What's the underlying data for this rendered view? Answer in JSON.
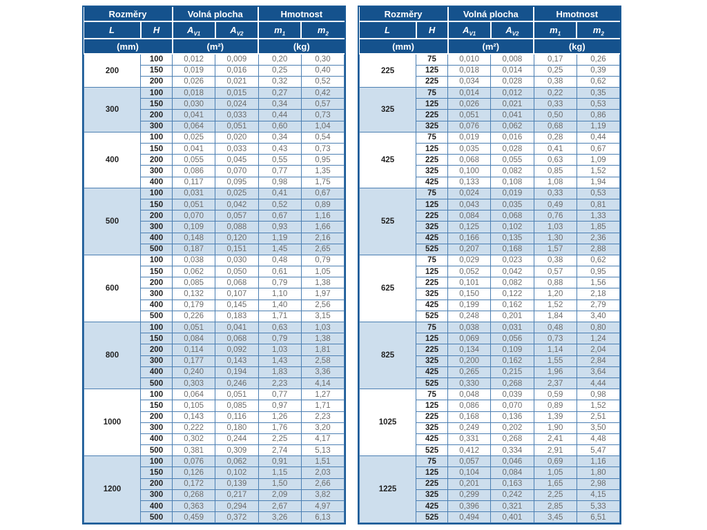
{
  "header": {
    "dimensions_label": "Rozměry",
    "free_area_label": "Volná plocha",
    "weight_label": "Hmotnost",
    "col_L": "L",
    "col_H": "H",
    "col_A_base": "A",
    "col_A_sub1": "V1",
    "col_A_sub2": "V2",
    "col_m_base": "m",
    "col_m_sub1": "1",
    "col_m_sub2": "2",
    "unit_mm": "(mm)",
    "unit_m2": "(m²)",
    "unit_kg": "(kg)"
  },
  "colors": {
    "header_bg": "#15528d",
    "outer_border": "#1a5a96",
    "grid_border": "#4a7eb2",
    "group_alt_bg": "#cddeed",
    "value_text": "#6b6b6b",
    "dim_text": "#222222"
  },
  "chart_data": {
    "type": "table",
    "note": "Ventilation grille size chart: dimensions L x H (mm), free area Av1/Av2 (m2), weight m1/m2 (kg)"
  },
  "tables": [
    {
      "name": "left",
      "groups": [
        {
          "L": "200",
          "rows": [
            [
              "100",
              "0,012",
              "0,009",
              "0,20",
              "0,30"
            ],
            [
              "150",
              "0,019",
              "0,016",
              "0,25",
              "0,40"
            ],
            [
              "200",
              "0,026",
              "0,021",
              "0,32",
              "0,52"
            ]
          ]
        },
        {
          "L": "300",
          "rows": [
            [
              "100",
              "0,018",
              "0,015",
              "0,27",
              "0,42"
            ],
            [
              "150",
              "0,030",
              "0,024",
              "0,34",
              "0,57"
            ],
            [
              "200",
              "0,041",
              "0,033",
              "0,44",
              "0,73"
            ],
            [
              "300",
              "0,064",
              "0,051",
              "0,60",
              "1,04"
            ]
          ]
        },
        {
          "L": "400",
          "rows": [
            [
              "100",
              "0,025",
              "0,020",
              "0,34",
              "0,54"
            ],
            [
              "150",
              "0,041",
              "0,033",
              "0,43",
              "0,73"
            ],
            [
              "200",
              "0,055",
              "0,045",
              "0,55",
              "0,95"
            ],
            [
              "300",
              "0,086",
              "0,070",
              "0,77",
              "1,35"
            ],
            [
              "400",
              "0,117",
              "0,095",
              "0,98",
              "1,75"
            ]
          ]
        },
        {
          "L": "500",
          "rows": [
            [
              "100",
              "0,031",
              "0,025",
              "0,41",
              "0,67"
            ],
            [
              "150",
              "0,051",
              "0,042",
              "0,52",
              "0,89"
            ],
            [
              "200",
              "0,070",
              "0,057",
              "0,67",
              "1,16"
            ],
            [
              "300",
              "0,109",
              "0,088",
              "0,93",
              "1,66"
            ],
            [
              "400",
              "0,148",
              "0,120",
              "1,19",
              "2,16"
            ],
            [
              "500",
              "0,187",
              "0,151",
              "1,45",
              "2,65"
            ]
          ]
        },
        {
          "L": "600",
          "rows": [
            [
              "100",
              "0,038",
              "0,030",
              "0,48",
              "0,79"
            ],
            [
              "150",
              "0,062",
              "0,050",
              "0,61",
              "1,05"
            ],
            [
              "200",
              "0,085",
              "0,068",
              "0,79",
              "1,38"
            ],
            [
              "300",
              "0,132",
              "0,107",
              "1,10",
              "1,97"
            ],
            [
              "400",
              "0,179",
              "0,145",
              "1,40",
              "2,56"
            ],
            [
              "500",
              "0,226",
              "0,183",
              "1,71",
              "3,15"
            ]
          ]
        },
        {
          "L": "800",
          "rows": [
            [
              "100",
              "0,051",
              "0,041",
              "0,63",
              "1,03"
            ],
            [
              "150",
              "0,084",
              "0,068",
              "0,79",
              "1,38"
            ],
            [
              "200",
              "0,114",
              "0,092",
              "1,03",
              "1,81"
            ],
            [
              "300",
              "0,177",
              "0,143",
              "1,43",
              "2,58"
            ],
            [
              "400",
              "0,240",
              "0,194",
              "1,83",
              "3,36"
            ],
            [
              "500",
              "0,303",
              "0,246",
              "2,23",
              "4,14"
            ]
          ]
        },
        {
          "L": "1000",
          "rows": [
            [
              "100",
              "0,064",
              "0,051",
              "0,77",
              "1,27"
            ],
            [
              "150",
              "0,105",
              "0,085",
              "0,97",
              "1,71"
            ],
            [
              "200",
              "0,143",
              "0,116",
              "1,26",
              "2,23"
            ],
            [
              "300",
              "0,222",
              "0,180",
              "1,76",
              "3,20"
            ],
            [
              "400",
              "0,302",
              "0,244",
              "2,25",
              "4,17"
            ],
            [
              "500",
              "0,381",
              "0,309",
              "2,74",
              "5,13"
            ]
          ]
        },
        {
          "L": "1200",
          "rows": [
            [
              "100",
              "0,076",
              "0,062",
              "0,91",
              "1,51"
            ],
            [
              "150",
              "0,126",
              "0,102",
              "1,15",
              "2,03"
            ],
            [
              "200",
              "0,172",
              "0,139",
              "1,50",
              "2,66"
            ],
            [
              "300",
              "0,268",
              "0,217",
              "2,09",
              "3,82"
            ],
            [
              "400",
              "0,363",
              "0,294",
              "2,67",
              "4,97"
            ],
            [
              "500",
              "0,459",
              "0,372",
              "3,26",
              "6,13"
            ]
          ]
        }
      ]
    },
    {
      "name": "right",
      "groups": [
        {
          "L": "225",
          "rows": [
            [
              "75",
              "0,010",
              "0,008",
              "0,17",
              "0,26"
            ],
            [
              "125",
              "0,018",
              "0,014",
              "0,25",
              "0,39"
            ],
            [
              "225",
              "0,034",
              "0,028",
              "0,38",
              "0,62"
            ]
          ]
        },
        {
          "L": "325",
          "rows": [
            [
              "75",
              "0,014",
              "0,012",
              "0,22",
              "0,35"
            ],
            [
              "125",
              "0,026",
              "0,021",
              "0,33",
              "0,53"
            ],
            [
              "225",
              "0,051",
              "0,041",
              "0,50",
              "0,86"
            ],
            [
              "325",
              "0,076",
              "0,062",
              "0,68",
              "1,19"
            ]
          ]
        },
        {
          "L": "425",
          "rows": [
            [
              "75",
              "0,019",
              "0,016",
              "0,28",
              "0,44"
            ],
            [
              "125",
              "0,035",
              "0,028",
              "0,41",
              "0,67"
            ],
            [
              "225",
              "0,068",
              "0,055",
              "0,63",
              "1,09"
            ],
            [
              "325",
              "0,100",
              "0,082",
              "0,85",
              "1,52"
            ],
            [
              "425",
              "0,133",
              "0,108",
              "1,08",
              "1,94"
            ]
          ]
        },
        {
          "L": "525",
          "rows": [
            [
              "75",
              "0,024",
              "0,019",
              "0,33",
              "0,53"
            ],
            [
              "125",
              "0,043",
              "0,035",
              "0,49",
              "0,81"
            ],
            [
              "225",
              "0,084",
              "0,068",
              "0,76",
              "1,33"
            ],
            [
              "325",
              "0,125",
              "0,102",
              "1,03",
              "1,85"
            ],
            [
              "425",
              "0,166",
              "0,135",
              "1,30",
              "2,36"
            ],
            [
              "525",
              "0,207",
              "0,168",
              "1,57",
              "2,88"
            ]
          ]
        },
        {
          "L": "625",
          "rows": [
            [
              "75",
              "0,029",
              "0,023",
              "0,38",
              "0,62"
            ],
            [
              "125",
              "0,052",
              "0,042",
              "0,57",
              "0,95"
            ],
            [
              "225",
              "0,101",
              "0,082",
              "0,88",
              "1,56"
            ],
            [
              "325",
              "0,150",
              "0,122",
              "1,20",
              "2,18"
            ],
            [
              "425",
              "0,199",
              "0,162",
              "1,52",
              "2,79"
            ],
            [
              "525",
              "0,248",
              "0,201",
              "1,84",
              "3,40"
            ]
          ]
        },
        {
          "L": "825",
          "rows": [
            [
              "75",
              "0,038",
              "0,031",
              "0,48",
              "0,80"
            ],
            [
              "125",
              "0,069",
              "0,056",
              "0,73",
              "1,24"
            ],
            [
              "225",
              "0,134",
              "0,109",
              "1,14",
              "2,04"
            ],
            [
              "325",
              "0,200",
              "0,162",
              "1,55",
              "2,84"
            ],
            [
              "425",
              "0,265",
              "0,215",
              "1,96",
              "3,64"
            ],
            [
              "525",
              "0,330",
              "0,268",
              "2,37",
              "4,44"
            ]
          ]
        },
        {
          "L": "1025",
          "rows": [
            [
              "75",
              "0,048",
              "0,039",
              "0,59",
              "0,98"
            ],
            [
              "125",
              "0,086",
              "0,070",
              "0,89",
              "1,52"
            ],
            [
              "225",
              "0,168",
              "0,136",
              "1,39",
              "2,51"
            ],
            [
              "325",
              "0,249",
              "0,202",
              "1,90",
              "3,50"
            ],
            [
              "425",
              "0,331",
              "0,268",
              "2,41",
              "4,48"
            ],
            [
              "525",
              "0,412",
              "0,334",
              "2,91",
              "5,47"
            ]
          ]
        },
        {
          "L": "1225",
          "rows": [
            [
              "75",
              "0,057",
              "0,046",
              "0,69",
              "1,16"
            ],
            [
              "125",
              "0,104",
              "0,084",
              "1,05",
              "1,80"
            ],
            [
              "225",
              "0,201",
              "0,163",
              "1,65",
              "2,98"
            ],
            [
              "325",
              "0,299",
              "0,242",
              "2,25",
              "4,15"
            ],
            [
              "425",
              "0,396",
              "0,321",
              "2,85",
              "5,33"
            ],
            [
              "525",
              "0,494",
              "0,401",
              "3,45",
              "6,51"
            ]
          ]
        }
      ]
    }
  ]
}
